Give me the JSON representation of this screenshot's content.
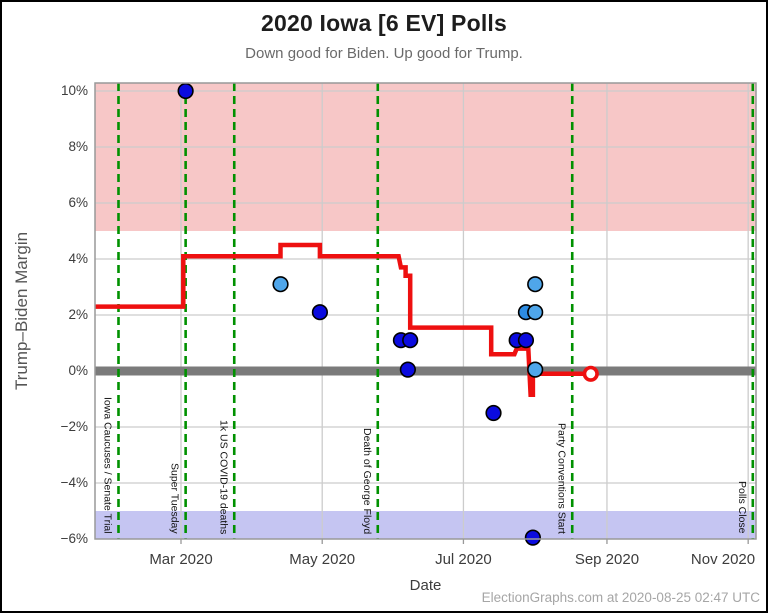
{
  "page": {
    "title": "2020 Iowa [6 EV] Polls",
    "subtitle": "Down good for Biden. Up good for Trump.",
    "footer": "ElectionGraphs.com at 2020-08-25 02:47 UTC"
  },
  "axes": {
    "y_title": "Trump–Biden Margin",
    "x_title": "Date",
    "y_ticks": [
      {
        "value": 10,
        "label": "10%"
      },
      {
        "value": 8,
        "label": "8%"
      },
      {
        "value": 6,
        "label": "6%"
      },
      {
        "value": 4,
        "label": "4%"
      },
      {
        "value": 2,
        "label": "2%"
      },
      {
        "value": 0,
        "label": "0%"
      },
      {
        "value": -2,
        "label": "−2%"
      },
      {
        "value": -4,
        "label": "−4%"
      },
      {
        "value": -6,
        "label": "−6%"
      }
    ],
    "x_ticks": [
      {
        "date": "2020-03-01",
        "label": "Mar 2020"
      },
      {
        "date": "2020-05-01",
        "label": "May 2020"
      },
      {
        "date": "2020-07-01",
        "label": "Jul 2020"
      },
      {
        "date": "2020-09-01",
        "label": "Sep 2020"
      },
      {
        "date": "2020-11-01",
        "label": "Nov 2020"
      }
    ]
  },
  "events": [
    {
      "date": "2020-02-03",
      "label": "Iowa Caucuses / Senate Trial"
    },
    {
      "date": "2020-03-03",
      "label": "Super Tuesday"
    },
    {
      "date": "2020-03-24",
      "label": "1k US COVID-19 deaths"
    },
    {
      "date": "2020-05-25",
      "label": "Death of George Floyd"
    },
    {
      "date": "2020-08-17",
      "label": "Party Conventions Start"
    },
    {
      "date": "2020-11-03",
      "label": "Polls Close"
    }
  ],
  "colors": {
    "trend_red": "#ee1010",
    "poll_dark": "#0b0bdf",
    "poll_medium": "#2d8ce2",
    "poll_light": "#4fa6ea",
    "trump_zone": "#f7c7c7",
    "biden_zone": "#c5c5f2",
    "zero_band": "#7b7b7b",
    "event_green": "#009100",
    "grid": "#cccccc",
    "frame": "#999999"
  },
  "chart_data": {
    "type": "line+scatter",
    "title": "2020 Iowa [6 EV] Polls",
    "subtitle": "Down good for Biden. Up good for Trump.",
    "xlabel": "Date",
    "ylabel": "Trump–Biden Margin",
    "ylim": [
      -6,
      10.3
    ],
    "xlim": [
      "2020-01-24",
      "2020-11-04"
    ],
    "grid": true,
    "zones": {
      "trump_zone_above": 5,
      "biden_zone_below": -5,
      "zero_line": 0
    },
    "trend": [
      [
        "2020-01-24",
        2.3
      ],
      [
        "2020-03-02",
        2.3
      ],
      [
        "2020-03-02",
        4.1
      ],
      [
        "2020-04-13",
        4.1
      ],
      [
        "2020-04-13",
        4.5
      ],
      [
        "2020-04-30",
        4.5
      ],
      [
        "2020-04-30",
        4.1
      ],
      [
        "2020-06-03",
        4.1
      ],
      [
        "2020-06-04",
        3.7
      ],
      [
        "2020-06-06",
        3.7
      ],
      [
        "2020-06-06",
        3.4
      ],
      [
        "2020-06-08",
        3.4
      ],
      [
        "2020-06-08",
        1.55
      ],
      [
        "2020-07-13",
        1.55
      ],
      [
        "2020-07-13",
        0.6
      ],
      [
        "2020-07-23",
        0.6
      ],
      [
        "2020-07-24",
        0.8
      ],
      [
        "2020-07-29",
        0.8
      ],
      [
        "2020-07-30",
        -0.85
      ],
      [
        "2020-07-31",
        -0.85
      ],
      [
        "2020-07-31",
        -0.1
      ],
      [
        "2020-08-25",
        -0.1
      ]
    ],
    "trend_endpoint": {
      "date": "2020-08-25",
      "value": -0.1
    },
    "polls": [
      {
        "date": "2020-03-03",
        "margin": 10.0,
        "shade": "dark"
      },
      {
        "date": "2020-04-13",
        "margin": 3.1,
        "shade": "light"
      },
      {
        "date": "2020-04-30",
        "margin": 2.1,
        "shade": "dark"
      },
      {
        "date": "2020-06-04",
        "margin": 1.1,
        "shade": "dark"
      },
      {
        "date": "2020-06-08",
        "margin": 1.1,
        "shade": "dark"
      },
      {
        "date": "2020-06-07",
        "margin": 0.05,
        "shade": "dark"
      },
      {
        "date": "2020-07-14",
        "margin": -1.5,
        "shade": "dark"
      },
      {
        "date": "2020-07-24",
        "margin": 1.1,
        "shade": "dark"
      },
      {
        "date": "2020-07-28",
        "margin": 1.1,
        "shade": "dark"
      },
      {
        "date": "2020-07-28",
        "margin": 2.1,
        "shade": "medium"
      },
      {
        "date": "2020-08-01",
        "margin": 2.1,
        "shade": "light"
      },
      {
        "date": "2020-08-01",
        "margin": 3.1,
        "shade": "light"
      },
      {
        "date": "2020-08-01",
        "margin": 0.05,
        "shade": "light"
      },
      {
        "date": "2020-07-31",
        "margin": -5.95,
        "shade": "dark"
      }
    ]
  }
}
